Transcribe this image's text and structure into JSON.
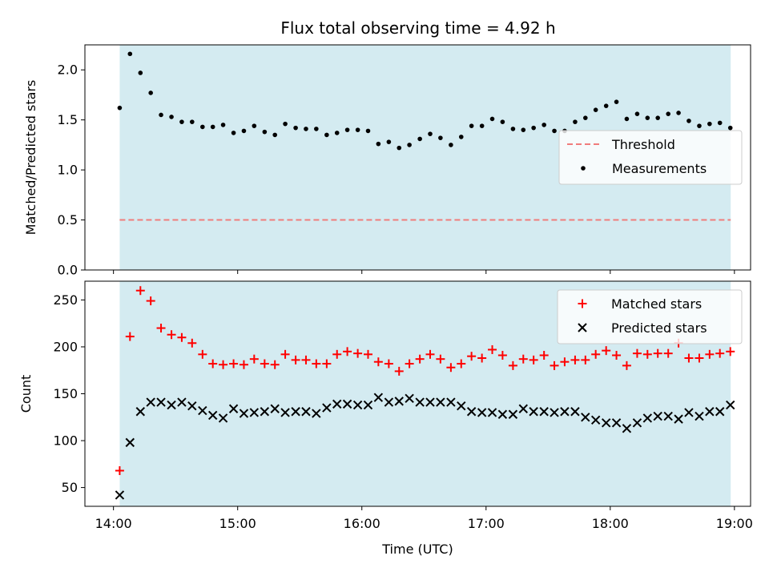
{
  "chart_data": [
    {
      "type": "scatter",
      "title": "Flux total observing time = 4.92 h",
      "xlabel": "",
      "ylabel": "Matched/Predicted stars",
      "xlim": [
        -0.23,
        5.13
      ],
      "ylim": [
        0.0,
        2.25
      ],
      "xtick_labels": [
        "",
        "",
        "",
        "",
        "",
        ""
      ],
      "yticks": [
        0.0,
        0.5,
        1.0,
        1.5,
        2.0
      ],
      "ytick_labels": [
        "0.0",
        "0.5",
        "1.0",
        "1.5",
        "2.0"
      ],
      "shaded_span": [
        0.05,
        4.97
      ],
      "shade_color": "#d4ebf1",
      "legend_position": "center-right",
      "threshold": {
        "name": "Threshold",
        "value": 0.5,
        "color": "#f07c7c"
      },
      "series": [
        {
          "name": "Measurements",
          "color": "#000000",
          "x": [
            0.05,
            0.133,
            0.217,
            0.3,
            0.383,
            0.467,
            0.55,
            0.633,
            0.717,
            0.8,
            0.883,
            0.967,
            1.05,
            1.133,
            1.217,
            1.3,
            1.383,
            1.467,
            1.55,
            1.633,
            1.717,
            1.8,
            1.883,
            1.967,
            2.05,
            2.133,
            2.217,
            2.3,
            2.383,
            2.467,
            2.55,
            2.633,
            2.717,
            2.8,
            2.883,
            2.967,
            3.05,
            3.133,
            3.217,
            3.3,
            3.383,
            3.467,
            3.55,
            3.633,
            3.717,
            3.8,
            3.883,
            3.967,
            4.05,
            4.133,
            4.217,
            4.3,
            4.383,
            4.467,
            4.55,
            4.633,
            4.717,
            4.8,
            4.883,
            4.967
          ],
          "y": [
            1.62,
            2.16,
            1.97,
            1.77,
            1.55,
            1.53,
            1.48,
            1.48,
            1.43,
            1.43,
            1.45,
            1.37,
            1.39,
            1.44,
            1.38,
            1.35,
            1.46,
            1.42,
            1.41,
            1.41,
            1.35,
            1.37,
            1.4,
            1.4,
            1.39,
            1.26,
            1.28,
            1.22,
            1.25,
            1.31,
            1.36,
            1.32,
            1.25,
            1.33,
            1.44,
            1.44,
            1.51,
            1.48,
            1.41,
            1.4,
            1.42,
            1.45,
            1.39,
            1.39,
            1.48,
            1.52,
            1.6,
            1.64,
            1.68,
            1.51,
            1.56,
            1.52,
            1.52,
            1.56,
            1.57,
            1.49,
            1.44,
            1.46,
            1.47,
            1.42
          ]
        }
      ]
    },
    {
      "type": "scatter",
      "title": "",
      "xlabel": "Time (UTC)",
      "ylabel": "Count",
      "xlim": [
        -0.23,
        5.13
      ],
      "ylim": [
        30,
        270
      ],
      "xticks": [
        0,
        1,
        2,
        3,
        4,
        5
      ],
      "xtick_labels": [
        "14:00",
        "15:00",
        "16:00",
        "17:00",
        "18:00",
        "19:00"
      ],
      "yticks": [
        50,
        100,
        150,
        200,
        250
      ],
      "ytick_labels": [
        "50",
        "100",
        "150",
        "200",
        "250"
      ],
      "shaded_span": [
        0.05,
        4.97
      ],
      "shade_color": "#d4ebf1",
      "legend_position": "top-right",
      "series": [
        {
          "name": "Matched stars",
          "marker": "plus",
          "color": "#ff0000",
          "x": [
            0.05,
            0.133,
            0.217,
            0.3,
            0.383,
            0.467,
            0.55,
            0.633,
            0.717,
            0.8,
            0.883,
            0.967,
            1.05,
            1.133,
            1.217,
            1.3,
            1.383,
            1.467,
            1.55,
            1.633,
            1.717,
            1.8,
            1.883,
            1.967,
            2.05,
            2.133,
            2.217,
            2.3,
            2.383,
            2.467,
            2.55,
            2.633,
            2.717,
            2.8,
            2.883,
            2.967,
            3.05,
            3.133,
            3.217,
            3.3,
            3.383,
            3.467,
            3.55,
            3.633,
            3.717,
            3.8,
            3.883,
            3.967,
            4.05,
            4.133,
            4.217,
            4.3,
            4.383,
            4.467,
            4.55,
            4.633,
            4.717,
            4.8,
            4.883,
            4.967
          ],
          "y": [
            68,
            211,
            260,
            249,
            220,
            213,
            210,
            204,
            192,
            182,
            181,
            182,
            181,
            187,
            182,
            181,
            192,
            186,
            186,
            182,
            182,
            192,
            195,
            193,
            192,
            184,
            182,
            174,
            182,
            187,
            192,
            187,
            178,
            182,
            190,
            188,
            197,
            191,
            180,
            187,
            186,
            191,
            180,
            184,
            186,
            186,
            192,
            196,
            191,
            180,
            193,
            192,
            193,
            193,
            204,
            188,
            188,
            192,
            193,
            195
          ]
        },
        {
          "name": "Predicted stars",
          "marker": "x",
          "color": "#000000",
          "x": [
            0.05,
            0.133,
            0.217,
            0.3,
            0.383,
            0.467,
            0.55,
            0.633,
            0.717,
            0.8,
            0.883,
            0.967,
            1.05,
            1.133,
            1.217,
            1.3,
            1.383,
            1.467,
            1.55,
            1.633,
            1.717,
            1.8,
            1.883,
            1.967,
            2.05,
            2.133,
            2.217,
            2.3,
            2.383,
            2.467,
            2.55,
            2.633,
            2.717,
            2.8,
            2.883,
            2.967,
            3.05,
            3.133,
            3.217,
            3.3,
            3.383,
            3.467,
            3.55,
            3.633,
            3.717,
            3.8,
            3.883,
            3.967,
            4.05,
            4.133,
            4.217,
            4.3,
            4.383,
            4.467,
            4.55,
            4.633,
            4.717,
            4.8,
            4.883,
            4.967
          ],
          "y": [
            42,
            98,
            131,
            141,
            141,
            138,
            141,
            137,
            132,
            127,
            124,
            134,
            129,
            130,
            131,
            134,
            130,
            131,
            131,
            129,
            135,
            139,
            139,
            138,
            138,
            146,
            141,
            142,
            145,
            141,
            141,
            141,
            141,
            137,
            131,
            130,
            130,
            128,
            128,
            134,
            131,
            131,
            130,
            131,
            131,
            125,
            122,
            119,
            119,
            113,
            119,
            124,
            126,
            126,
            123,
            130,
            126,
            131,
            131,
            138
          ]
        }
      ]
    }
  ]
}
